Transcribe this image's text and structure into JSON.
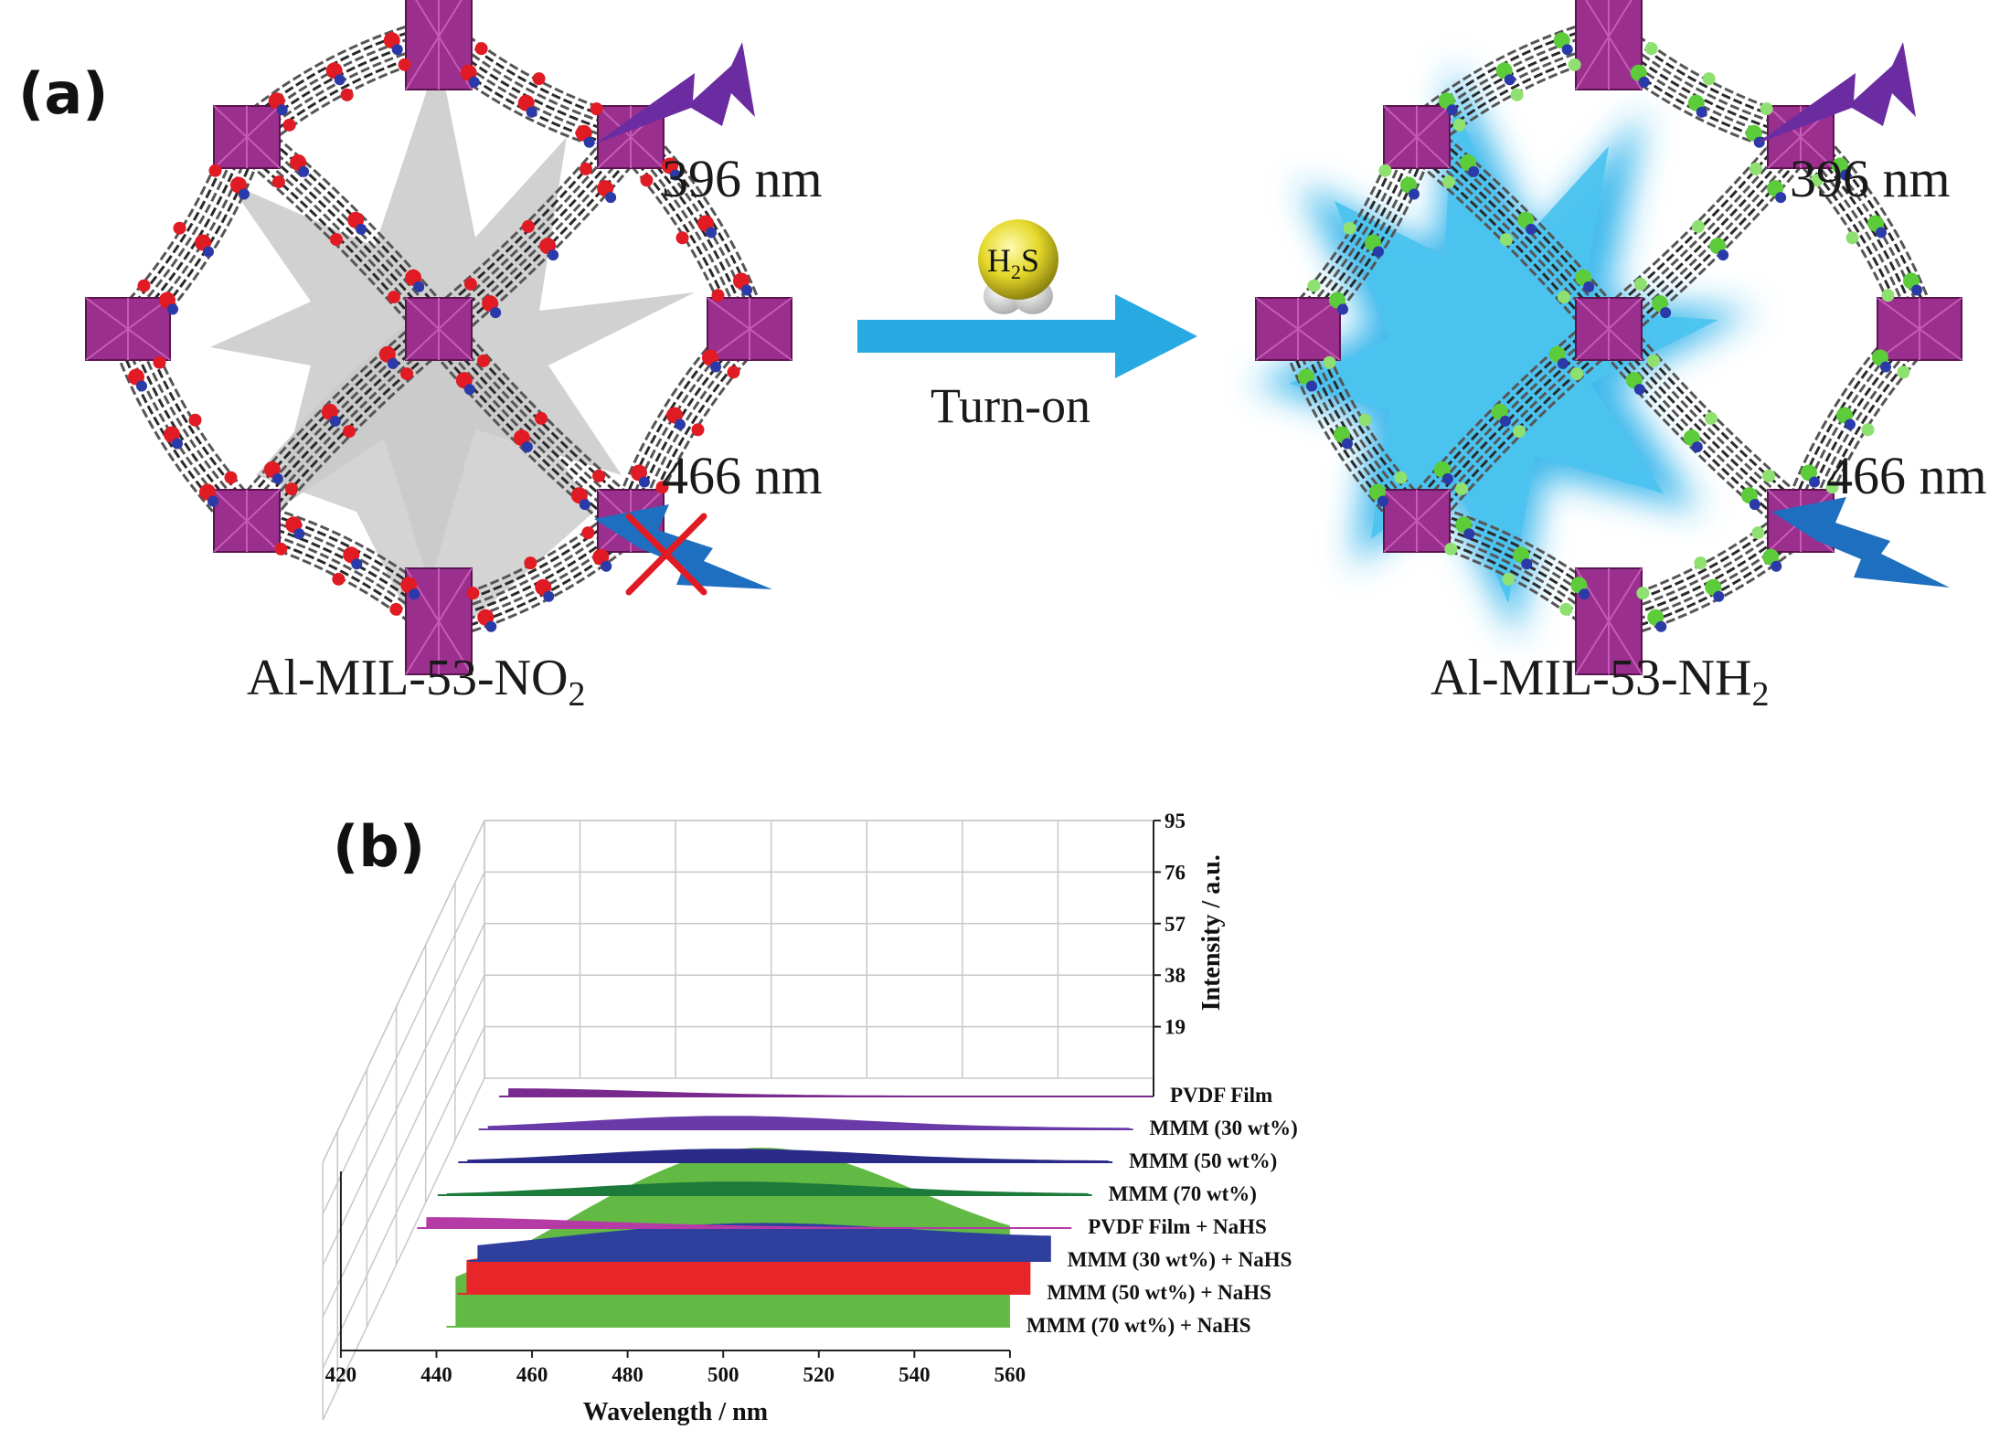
{
  "panel_a": {
    "label": "(a)",
    "left_material": {
      "base": "Al-MIL-53-NO",
      "subscript": "2"
    },
    "right_material": {
      "base": "Al-MIL-53-NH",
      "subscript": "2"
    },
    "excitation": "396 nm",
    "emission": "466 nm",
    "reagent": {
      "base": "H",
      "subscript": "2",
      "tail": "S"
    },
    "arrow_label": "Turn-on",
    "colors": {
      "octahedra": "#9b2f8e",
      "nitro_O": "#e01b24",
      "amine_H": "#5ccc3a",
      "glow": "#2ab0ea",
      "arrow": "#27a9e1",
      "violet_bolt": "#6a2ca0",
      "blue_bolt": "#1e6fc0",
      "cross": "#e01b24"
    },
    "icons": [
      "left-bolt-icon",
      "cross-icon",
      "h2s-molecule-icon",
      "reaction-arrow-icon"
    ]
  },
  "panel_b": {
    "label": "(b)",
    "chart_data": {
      "type": "area",
      "xlabel": "Wavelength / nm",
      "ylabel": "Intensity / a.u.",
      "x_ticks": [
        420,
        440,
        460,
        480,
        500,
        520,
        540,
        560
      ],
      "y_ticks": [
        19,
        38,
        57,
        76,
        95
      ],
      "xlim": [
        420,
        560
      ],
      "ylim": [
        0,
        95
      ],
      "grid": true,
      "series": [
        {
          "name": "PVDF Film",
          "color": "#7a2a8e",
          "peak_x": 425,
          "peak_y": 3,
          "tail_y": 0.3,
          "width": 30
        },
        {
          "name": "MMM (30 wt%)",
          "color": "#6a3aa8",
          "peak_x": 475,
          "peak_y": 5,
          "tail_y": 0.5,
          "width": 30
        },
        {
          "name": "MMM (50 wt%)",
          "color": "#2a2a88",
          "peak_x": 480,
          "peak_y": 5,
          "tail_y": 0.5,
          "width": 30
        },
        {
          "name": "MMM (70 wt%)",
          "color": "#1c7a3a",
          "peak_x": 485,
          "peak_y": 5,
          "tail_y": 0.5,
          "width": 30
        },
        {
          "name": "PVDF Film + NaHS",
          "color": "#b43aa6",
          "peak_x": 425,
          "peak_y": 4,
          "tail_y": 0.3,
          "width": 35
        },
        {
          "name": "MMM (30 wt%) + NaHS",
          "color": "#2f3f9e",
          "peak_x": 500,
          "peak_y": 14,
          "tail_y": 6,
          "width": 45
        },
        {
          "name": "MMM (50 wt%) + NaHS",
          "color": "#e8262a",
          "peak_x": 505,
          "peak_y": 24,
          "tail_y": 15,
          "width": 55
        },
        {
          "name": "MMM (70 wt%) + NaHS",
          "color": "#62b944",
          "peak_x": 508,
          "peak_y": 66,
          "tail_y": 18,
          "width": 40
        }
      ]
    }
  }
}
